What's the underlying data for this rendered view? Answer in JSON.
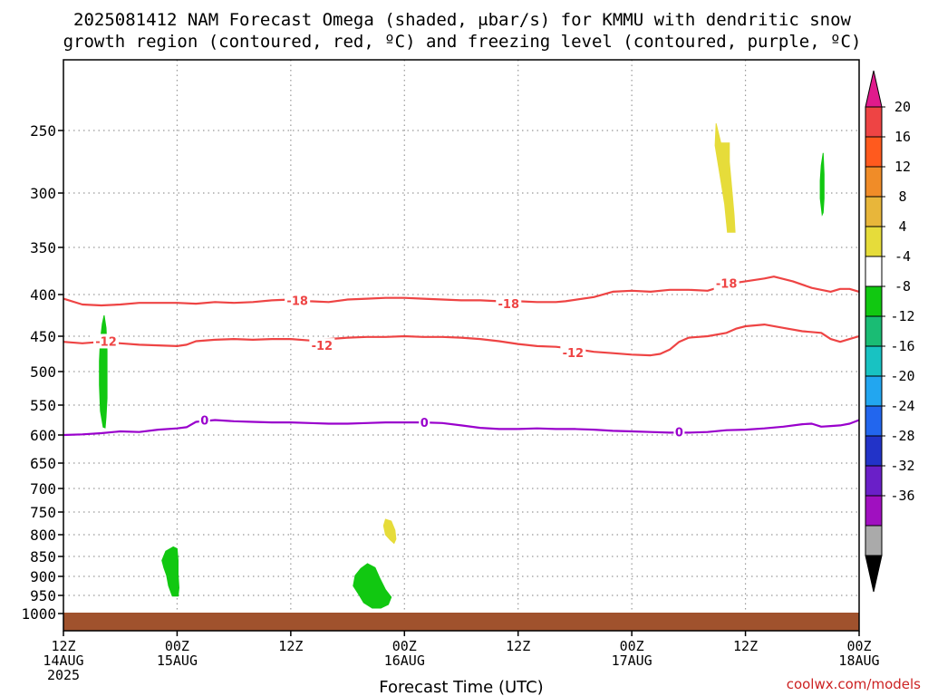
{
  "title_line1": "2025081412 NAM Forecast Omega (shaded, μbar/s) for KMMU with dendritic snow",
  "title_line2": "growth region (contoured, red, ºC) and freezing level (contoured, purple, ºC)",
  "xlabel": "Forecast Time (UTC)",
  "credit": "coolwx.com/models",
  "colors": {
    "dgz_contour": "#ee4444",
    "freezing_contour": "#9900cc",
    "ground": "#a0522d",
    "grid": "#999999"
  },
  "chart_data": {
    "type": "time-pressure cross section",
    "xlim_hours": [
      0,
      84
    ],
    "ylim_hPa": [
      1000,
      200
    ],
    "y_ticks": [
      250,
      300,
      350,
      400,
      450,
      500,
      550,
      600,
      650,
      700,
      750,
      800,
      850,
      900,
      950,
      1000
    ],
    "x_ticks": [
      {
        "h": 0,
        "l1": "12Z",
        "l2": "14AUG",
        "l3": "2025"
      },
      {
        "h": 12,
        "l1": "00Z",
        "l2": "15AUG",
        "l3": ""
      },
      {
        "h": 24,
        "l1": "12Z",
        "l2": "",
        "l3": ""
      },
      {
        "h": 36,
        "l1": "00Z",
        "l2": "16AUG",
        "l3": ""
      },
      {
        "h": 48,
        "l1": "12Z",
        "l2": "",
        "l3": ""
      },
      {
        "h": 60,
        "l1": "00Z",
        "l2": "17AUG",
        "l3": ""
      },
      {
        "h": 72,
        "l1": "12Z",
        "l2": "",
        "l3": ""
      },
      {
        "h": 84,
        "l1": "00Z",
        "l2": "18AUG",
        "l3": ""
      }
    ],
    "contours": [
      {
        "name": "-18",
        "color": "#ee4444",
        "labels": [
          {
            "h": 24.7,
            "p": 407
          },
          {
            "h": 47.0,
            "p": 411
          },
          {
            "h": 70.0,
            "p": 388
          }
        ],
        "points": [
          [
            0,
            405
          ],
          [
            2,
            412
          ],
          [
            4,
            413
          ],
          [
            6,
            412
          ],
          [
            8,
            410
          ],
          [
            10,
            410
          ],
          [
            12,
            410
          ],
          [
            14,
            411
          ],
          [
            16,
            409
          ],
          [
            18,
            410
          ],
          [
            20,
            409
          ],
          [
            22,
            407
          ],
          [
            24,
            406
          ],
          [
            26,
            408
          ],
          [
            28,
            409
          ],
          [
            30,
            406
          ],
          [
            32,
            405
          ],
          [
            34,
            404
          ],
          [
            36,
            404
          ],
          [
            38,
            405
          ],
          [
            40,
            406
          ],
          [
            42,
            407
          ],
          [
            44,
            407
          ],
          [
            46,
            408
          ],
          [
            48,
            408
          ],
          [
            50,
            409
          ],
          [
            52,
            409
          ],
          [
            53,
            408
          ],
          [
            56,
            403
          ],
          [
            58,
            397
          ],
          [
            60,
            396
          ],
          [
            62,
            397
          ],
          [
            64,
            395
          ],
          [
            66,
            395
          ],
          [
            68,
            396
          ],
          [
            69,
            393
          ],
          [
            70,
            389
          ],
          [
            72,
            386
          ],
          [
            74,
            383
          ],
          [
            75,
            381
          ],
          [
            77,
            386
          ],
          [
            79,
            393
          ],
          [
            81,
            397
          ],
          [
            82,
            394
          ],
          [
            83,
            394
          ],
          [
            84,
            397
          ]
        ]
      },
      {
        "name": "-12",
        "color": "#ee4444",
        "labels": [
          {
            "h": 4.5,
            "p": 457
          },
          {
            "h": 27.3,
            "p": 463
          },
          {
            "h": 53.8,
            "p": 473
          }
        ],
        "points": [
          [
            0,
            458
          ],
          [
            2,
            460
          ],
          [
            4,
            458
          ],
          [
            6,
            460
          ],
          [
            8,
            462
          ],
          [
            10,
            463
          ],
          [
            12,
            464
          ],
          [
            13,
            462
          ],
          [
            14,
            457
          ],
          [
            16,
            455
          ],
          [
            18,
            454
          ],
          [
            20,
            455
          ],
          [
            22,
            454
          ],
          [
            24,
            454
          ],
          [
            26,
            456
          ],
          [
            28,
            454
          ],
          [
            30,
            452
          ],
          [
            32,
            451
          ],
          [
            34,
            451
          ],
          [
            36,
            450
          ],
          [
            38,
            451
          ],
          [
            40,
            451
          ],
          [
            42,
            452
          ],
          [
            44,
            454
          ],
          [
            46,
            457
          ],
          [
            48,
            461
          ],
          [
            50,
            464
          ],
          [
            52,
            465
          ],
          [
            54,
            468
          ],
          [
            56,
            472
          ],
          [
            58,
            474
          ],
          [
            60,
            476
          ],
          [
            62,
            477
          ],
          [
            63,
            475
          ],
          [
            64,
            469
          ],
          [
            65,
            458
          ],
          [
            66,
            452
          ],
          [
            68,
            450
          ],
          [
            70,
            446
          ],
          [
            71,
            441
          ],
          [
            72,
            438
          ],
          [
            74,
            436
          ],
          [
            76,
            440
          ],
          [
            78,
            444
          ],
          [
            80,
            446
          ],
          [
            81,
            454
          ],
          [
            82,
            458
          ],
          [
            83,
            454
          ],
          [
            84,
            450
          ]
        ]
      },
      {
        "name": "0",
        "color": "#9900cc",
        "labels": [
          {
            "h": 14.9,
            "p": 575
          },
          {
            "h": 38.1,
            "p": 579
          },
          {
            "h": 65.0,
            "p": 595
          }
        ],
        "points": [
          [
            0,
            600
          ],
          [
            2,
            599
          ],
          [
            4,
            597
          ],
          [
            6,
            594
          ],
          [
            8,
            595
          ],
          [
            10,
            591
          ],
          [
            12,
            589
          ],
          [
            13,
            587
          ],
          [
            14,
            578
          ],
          [
            16,
            575
          ],
          [
            18,
            577
          ],
          [
            20,
            578
          ],
          [
            22,
            579
          ],
          [
            24,
            579
          ],
          [
            26,
            580
          ],
          [
            28,
            581
          ],
          [
            30,
            581
          ],
          [
            32,
            580
          ],
          [
            34,
            579
          ],
          [
            36,
            579
          ],
          [
            38,
            579
          ],
          [
            40,
            580
          ],
          [
            42,
            584
          ],
          [
            44,
            588
          ],
          [
            46,
            590
          ],
          [
            48,
            590
          ],
          [
            50,
            589
          ],
          [
            52,
            590
          ],
          [
            54,
            590
          ],
          [
            56,
            591
          ],
          [
            58,
            593
          ],
          [
            60,
            594
          ],
          [
            62,
            595
          ],
          [
            64,
            596
          ],
          [
            66,
            596
          ],
          [
            68,
            595
          ],
          [
            70,
            592
          ],
          [
            72,
            591
          ],
          [
            74,
            589
          ],
          [
            76,
            586
          ],
          [
            78,
            582
          ],
          [
            79,
            581
          ],
          [
            80,
            586
          ],
          [
            81,
            585
          ],
          [
            82,
            584
          ],
          [
            83,
            581
          ],
          [
            84,
            575
          ]
        ]
      }
    ],
    "omega_blobs": [
      {
        "fill": "#11c811",
        "range": "-8 to -4",
        "pts": [
          [
            4.2,
            587
          ],
          [
            3.9,
            560
          ],
          [
            3.8,
            520
          ],
          [
            3.8,
            485
          ],
          [
            3.9,
            455
          ],
          [
            4.1,
            435
          ],
          [
            4.3,
            425
          ],
          [
            4.5,
            440
          ],
          [
            4.6,
            470
          ],
          [
            4.6,
            505
          ],
          [
            4.6,
            540
          ],
          [
            4.5,
            570
          ],
          [
            4.4,
            588
          ]
        ]
      },
      {
        "fill": "#11c811",
        "range": "-8 to -4",
        "pts": [
          [
            11.5,
            952
          ],
          [
            11.1,
            925
          ],
          [
            10.9,
            898
          ],
          [
            10.6,
            878
          ],
          [
            10.4,
            860
          ],
          [
            10.8,
            838
          ],
          [
            11.6,
            828
          ],
          [
            12.0,
            832
          ],
          [
            12.1,
            860
          ],
          [
            12.1,
            895
          ],
          [
            12.2,
            930
          ],
          [
            12.1,
            952
          ]
        ]
      },
      {
        "fill": "#11c811",
        "range": "-8 to -4",
        "pts": [
          [
            32.6,
            985
          ],
          [
            31.7,
            970
          ],
          [
            31.2,
            948
          ],
          [
            30.6,
            925
          ],
          [
            30.8,
            898
          ],
          [
            31.4,
            880
          ],
          [
            32.1,
            868
          ],
          [
            32.9,
            878
          ],
          [
            33.4,
            905
          ],
          [
            34.0,
            935
          ],
          [
            34.6,
            955
          ],
          [
            34.3,
            975
          ],
          [
            33.5,
            985
          ]
        ]
      },
      {
        "fill": "#11c811",
        "range": "-8 to -4",
        "pts": [
          [
            80.1,
            320
          ],
          [
            79.9,
            305
          ],
          [
            79.9,
            290
          ],
          [
            80.0,
            278
          ],
          [
            80.2,
            268
          ],
          [
            80.3,
            285
          ],
          [
            80.3,
            305
          ],
          [
            80.2,
            318
          ]
        ]
      },
      {
        "fill": "#e6dc3a",
        "range": "4 to 8",
        "pts": [
          [
            70.1,
            336
          ],
          [
            69.8,
            310
          ],
          [
            69.3,
            285
          ],
          [
            68.8,
            262
          ],
          [
            68.9,
            245
          ],
          [
            69.4,
            260
          ],
          [
            70.3,
            260
          ],
          [
            70.3,
            275
          ],
          [
            70.6,
            300
          ],
          [
            70.8,
            320
          ],
          [
            70.9,
            336
          ]
        ]
      },
      {
        "fill": "#e6dc3a",
        "range": "4 to 8",
        "pts": [
          [
            34.5,
            812
          ],
          [
            34.0,
            800
          ],
          [
            33.8,
            780
          ],
          [
            34.0,
            766
          ],
          [
            34.6,
            770
          ],
          [
            35.0,
            790
          ],
          [
            35.1,
            810
          ],
          [
            34.9,
            820
          ]
        ]
      }
    ],
    "ground_top_hPa": 1000,
    "colorbar": {
      "labels": [
        "20",
        "16",
        "12",
        "8",
        "4",
        "-4",
        "-8",
        "-12",
        "-16",
        "-20",
        "-24",
        "-28",
        "-32",
        "-36"
      ],
      "segments": [
        "#ee4444",
        "#ff5a1e",
        "#f08c28",
        "#e8b63a",
        "#e6dc3a",
        "#ffffff",
        "#11c811",
        "#1abc74",
        "#18c2c2",
        "#22a6f0",
        "#2266ee",
        "#2233c8",
        "#6a1fc8",
        "#a010c0",
        "#aaaaaa"
      ],
      "top_arrow": "#e01a8c",
      "bottom_arrow": "#000000"
    }
  }
}
